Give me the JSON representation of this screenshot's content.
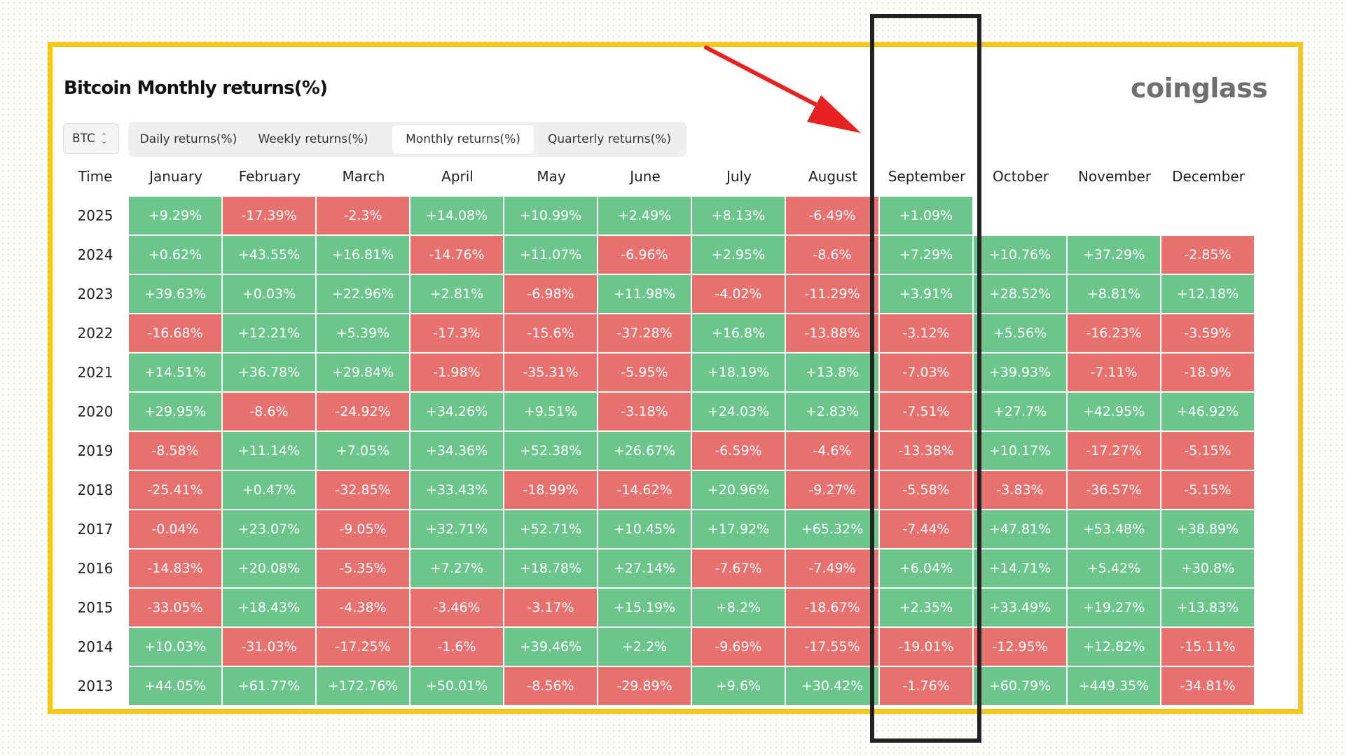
{
  "title": "Bitcoin Monthly returns(%)",
  "logo": "coinglass",
  "coin_select": {
    "value": "BTC",
    "icon": "chevron-updown-icon"
  },
  "tabs": [
    {
      "label": "Daily returns(%)",
      "active": false
    },
    {
      "label": "Weekly returns(%)",
      "active": false
    },
    {
      "label": "Monthly returns(%)",
      "active": true
    },
    {
      "label": "Quarterly returns(%)",
      "active": false
    }
  ],
  "colors": {
    "positive": "#6cc58b",
    "negative": "#e7716e",
    "frame": "#f6c71b",
    "highlight_box": "#222222",
    "arrow": "#e82222"
  },
  "table": {
    "time_header": "Time",
    "months": [
      "January",
      "February",
      "March",
      "April",
      "May",
      "June",
      "July",
      "August",
      "September",
      "October",
      "November",
      "December"
    ],
    "rows": [
      {
        "year": "2025",
        "values": [
          "+9.29%",
          "-17.39%",
          "-2.3%",
          "+14.08%",
          "+10.99%",
          "+2.49%",
          "+8.13%",
          "-6.49%",
          "+1.09%",
          "",
          "",
          ""
        ]
      },
      {
        "year": "2024",
        "values": [
          "+0.62%",
          "+43.55%",
          "+16.81%",
          "-14.76%",
          "+11.07%",
          "-6.96%",
          "+2.95%",
          "-8.6%",
          "+7.29%",
          "+10.76%",
          "+37.29%",
          "-2.85%"
        ]
      },
      {
        "year": "2023",
        "values": [
          "+39.63%",
          "+0.03%",
          "+22.96%",
          "+2.81%",
          "-6.98%",
          "+11.98%",
          "-4.02%",
          "-11.29%",
          "+3.91%",
          "+28.52%",
          "+8.81%",
          "+12.18%"
        ]
      },
      {
        "year": "2022",
        "values": [
          "-16.68%",
          "+12.21%",
          "+5.39%",
          "-17.3%",
          "-15.6%",
          "-37.28%",
          "+16.8%",
          "-13.88%",
          "-3.12%",
          "+5.56%",
          "-16.23%",
          "-3.59%"
        ]
      },
      {
        "year": "2021",
        "values": [
          "+14.51%",
          "+36.78%",
          "+29.84%",
          "-1.98%",
          "-35.31%",
          "-5.95%",
          "+18.19%",
          "+13.8%",
          "-7.03%",
          "+39.93%",
          "-7.11%",
          "-18.9%"
        ]
      },
      {
        "year": "2020",
        "values": [
          "+29.95%",
          "-8.6%",
          "-24.92%",
          "+34.26%",
          "+9.51%",
          "-3.18%",
          "+24.03%",
          "+2.83%",
          "-7.51%",
          "+27.7%",
          "+42.95%",
          "+46.92%"
        ]
      },
      {
        "year": "2019",
        "values": [
          "-8.58%",
          "+11.14%",
          "+7.05%",
          "+34.36%",
          "+52.38%",
          "+26.67%",
          "-6.59%",
          "-4.6%",
          "-13.38%",
          "+10.17%",
          "-17.27%",
          "-5.15%"
        ]
      },
      {
        "year": "2018",
        "values": [
          "-25.41%",
          "+0.47%",
          "-32.85%",
          "+33.43%",
          "-18.99%",
          "-14.62%",
          "+20.96%",
          "-9.27%",
          "-5.58%",
          "-3.83%",
          "-36.57%",
          "-5.15%"
        ]
      },
      {
        "year": "2017",
        "values": [
          "-0.04%",
          "+23.07%",
          "-9.05%",
          "+32.71%",
          "+52.71%",
          "+10.45%",
          "+17.92%",
          "+65.32%",
          "-7.44%",
          "+47.81%",
          "+53.48%",
          "+38.89%"
        ]
      },
      {
        "year": "2016",
        "values": [
          "-14.83%",
          "+20.08%",
          "-5.35%",
          "+7.27%",
          "+18.78%",
          "+27.14%",
          "-7.67%",
          "-7.49%",
          "+6.04%",
          "+14.71%",
          "+5.42%",
          "+30.8%"
        ]
      },
      {
        "year": "2015",
        "values": [
          "-33.05%",
          "+18.43%",
          "-4.38%",
          "-3.46%",
          "-3.17%",
          "+15.19%",
          "+8.2%",
          "-18.67%",
          "+2.35%",
          "+33.49%",
          "+19.27%",
          "+13.83%"
        ]
      },
      {
        "year": "2014",
        "values": [
          "+10.03%",
          "-31.03%",
          "-17.25%",
          "-1.6%",
          "+39.46%",
          "+2.2%",
          "-9.69%",
          "-17.55%",
          "-19.01%",
          "-12.95%",
          "+12.82%",
          "-15.11%"
        ]
      },
      {
        "year": "2013",
        "values": [
          "+44.05%",
          "+61.77%",
          "+172.76%",
          "+50.01%",
          "-8.56%",
          "-29.89%",
          "+9.6%",
          "+30.42%",
          "-1.76%",
          "+60.79%",
          "+449.35%",
          "-34.81%"
        ]
      }
    ]
  },
  "annotations": {
    "highlight": "September column outlined in black",
    "arrow_icon": "red-arrow-icon"
  }
}
